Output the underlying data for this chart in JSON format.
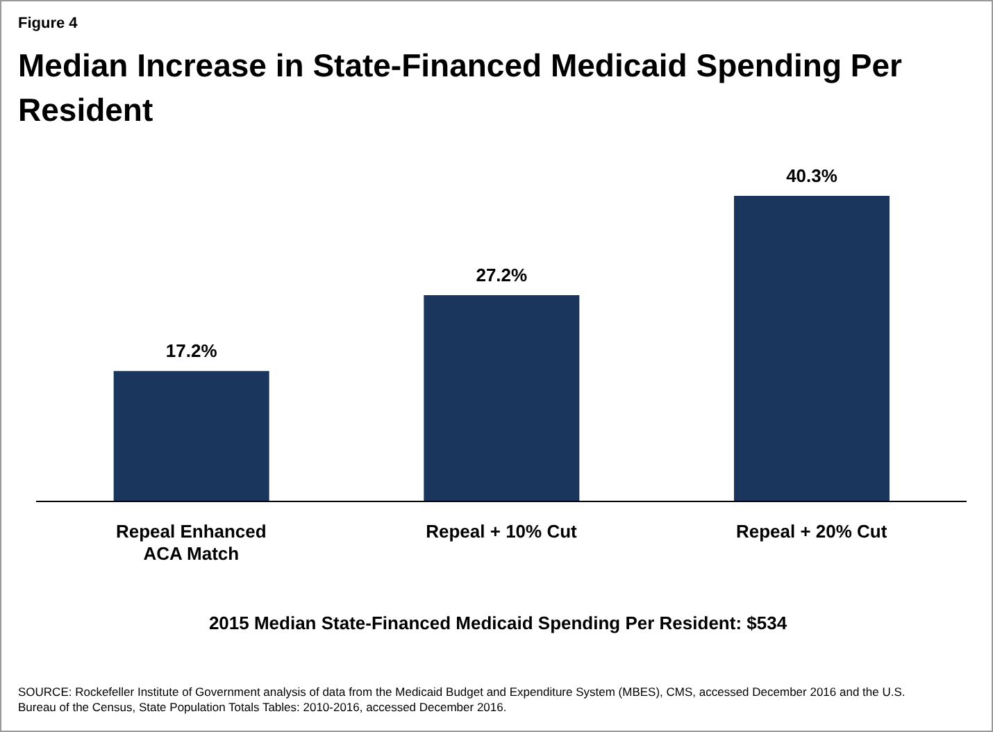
{
  "chart_data": {
    "type": "bar",
    "subtitle": "Figure 4",
    "title": "Median Increase in State-Financed Medicaid Spending Per Resident",
    "categories": [
      "Repeal Enhanced ACA Match",
      "Repeal + 10% Cut",
      "Repeal + 20% Cut"
    ],
    "values": [
      17.2,
      27.2,
      40.3
    ],
    "color": "#1b365d",
    "value_labels": [
      "17.2%",
      "27.2%",
      "40.3%"
    ],
    "annotations": [
      "2015 Median State-Financed Medicaid Spending Per Resident: $534",
      "SOURCE: Rockefeller Institute of Government analysis of data from the Medicaid Budget and Expenditure System (MBES), CMS, accessed December 2016 and the U.S. Bureau of the Census, State Population Totals Tables: 2010-2016, accessed December 2016."
    ],
    "grid": false,
    "legend": false
  }
}
